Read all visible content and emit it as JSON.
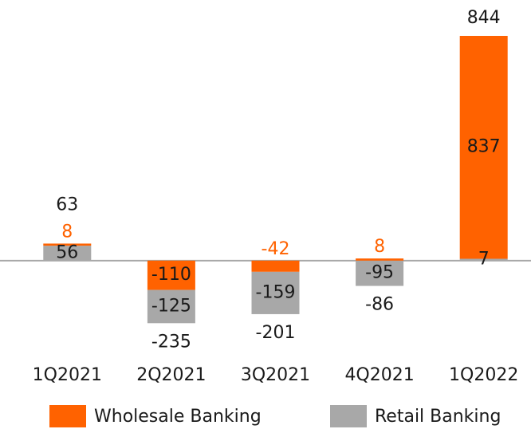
{
  "chart_data": {
    "type": "stacked_bar",
    "categories": [
      "1Q2021",
      "2Q2021",
      "3Q2021",
      "4Q2021",
      "1Q2022"
    ],
    "series": [
      {
        "name": "Wholesale Banking",
        "color": "#ff6200",
        "values": [
          8,
          -110,
          -42,
          8,
          837
        ]
      },
      {
        "name": "Retail Banking",
        "color": "#a8a8a8",
        "values": [
          56,
          -125,
          -159,
          -95,
          7
        ]
      }
    ],
    "totals": [
      63,
      -235,
      -201,
      -86,
      844
    ],
    "ylim": [
      -300,
      850
    ]
  }
}
